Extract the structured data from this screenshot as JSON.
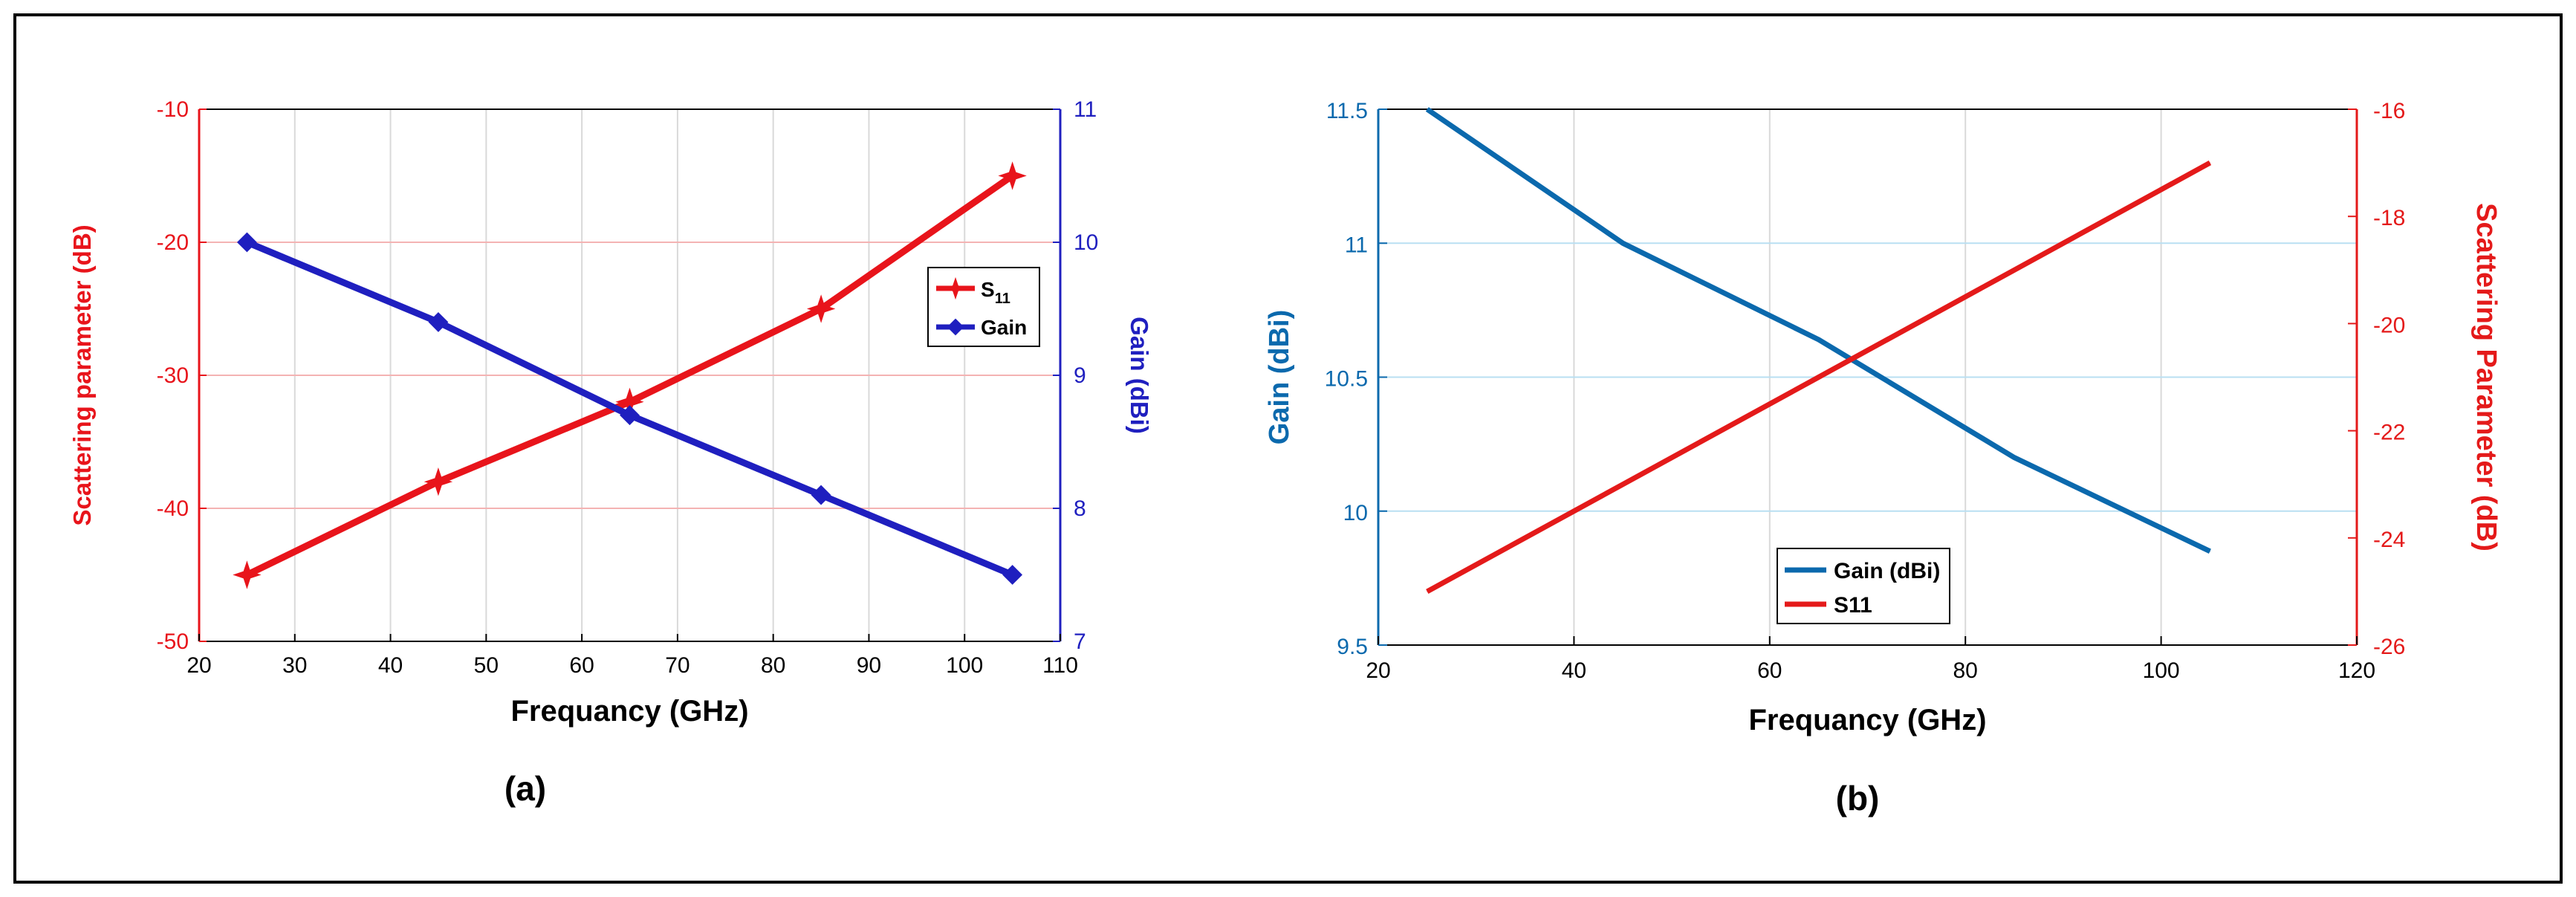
{
  "panel_labels": [
    "(a)",
    "(b)"
  ],
  "colors": {
    "a_s11": "#e8141b",
    "a_gain": "#1f1fbf",
    "b_gain": "#0b69ad",
    "b_s11": "#e41a1a",
    "grid": "#d9d9d9",
    "red_grid": "#f4b3b3",
    "blue_grid": "#b9dff2"
  },
  "chart_data": [
    {
      "type": "line",
      "xlabel": "Frequancy (GHz)",
      "ylabel_left": "Scattering parameter (dB)",
      "ylabel_right": "Gain (dBi)",
      "xlim": [
        20,
        110
      ],
      "ylim_left": [
        -50,
        -10
      ],
      "ylim_right": [
        7,
        11
      ],
      "x_ticks": [
        20,
        30,
        40,
        50,
        60,
        70,
        80,
        90,
        100,
        110
      ],
      "y_ticks_left": [
        -50,
        -40,
        -30,
        -20,
        -10
      ],
      "y_ticks_right": [
        7,
        8,
        9,
        10,
        11
      ],
      "grid": true,
      "legend_position": "upper-right",
      "x": [
        25,
        45,
        65,
        85,
        105
      ],
      "series": [
        {
          "name": "S11",
          "name_main": "S",
          "name_sub": "11",
          "axis": "left",
          "values": [
            -45,
            -38,
            -32,
            -25,
            -15
          ],
          "marker": "star"
        },
        {
          "name": "Gain",
          "axis": "right",
          "values": [
            10,
            9.4,
            8.7,
            8.1,
            7.5
          ],
          "marker": "diamond"
        }
      ]
    },
    {
      "type": "line",
      "xlabel": "Frequancy (GHz)",
      "ylabel_left": "Gain (dBi)",
      "ylabel_right": "Scattering Parameter (dB)",
      "xlim": [
        20,
        120
      ],
      "ylim_left": [
        9.5,
        11.5
      ],
      "ylim_right": [
        -26,
        -16
      ],
      "x_ticks": [
        20,
        40,
        60,
        80,
        100,
        120
      ],
      "y_ticks_left": [
        9.5,
        10,
        10.5,
        11,
        11.5
      ],
      "y_ticks_right": [
        -26,
        -24,
        -22,
        -20,
        -18,
        -16
      ],
      "grid": true,
      "legend_position": "lower-center",
      "x": [
        25,
        45,
        65,
        85,
        105
      ],
      "series": [
        {
          "name": "Gain (dBi)",
          "axis": "left",
          "values": [
            11.5,
            11.0,
            10.64,
            10.2,
            9.85
          ]
        },
        {
          "name": "S11",
          "axis": "right",
          "values": [
            -25,
            -23,
            -21,
            -19,
            -17
          ]
        }
      ]
    }
  ]
}
